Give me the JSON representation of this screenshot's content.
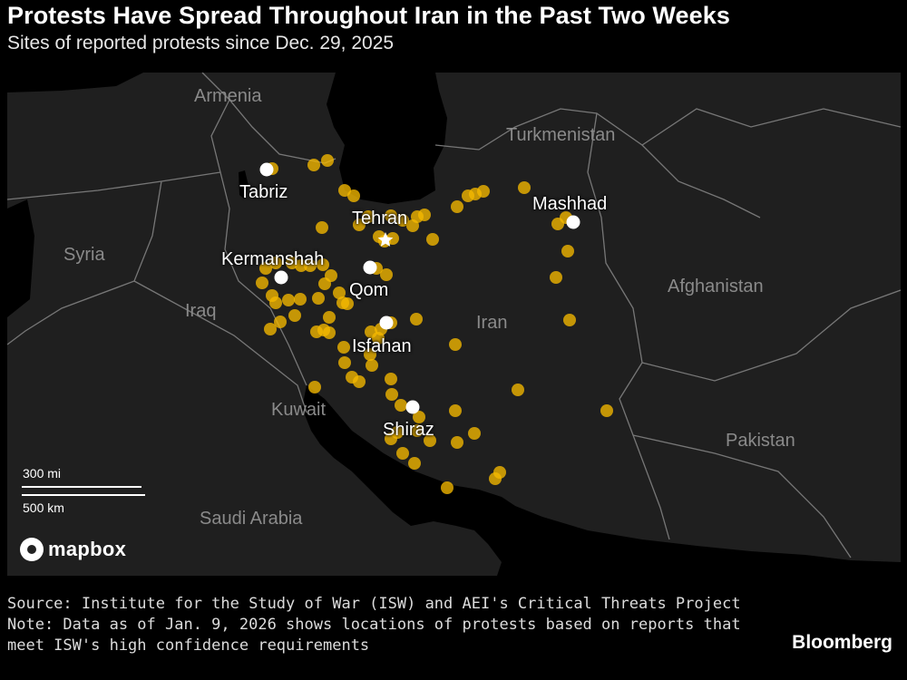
{
  "header": {
    "title": "Protests Have Spread Throughout Iran in the Past Two Weeks",
    "subtitle": "Sites of reported protests since Dec. 29, 2025"
  },
  "map": {
    "countries": {
      "armenia": "Armenia",
      "turkmenistan": "Turkmenistan",
      "syria": "Syria",
      "iraq": "Iraq",
      "iran": "Iran",
      "afghanistan": "Afghanistan",
      "kuwait": "Kuwait",
      "pakistan": "Pakistan",
      "saudi_arabia": "Saudi Arabia"
    },
    "cities": {
      "tabriz": "Tabriz",
      "tehran": "Tehran",
      "mashhad": "Mashhad",
      "kermanshah": "Kermanshah",
      "qom": "Qom",
      "isfahan": "Isfahan",
      "shiraz": "Shiraz"
    },
    "scale": {
      "miles": "300 mi",
      "km": "500 km"
    },
    "attribution": "mapbox",
    "colors": {
      "protest_site": "#f5b800",
      "major_city": "#ffffff",
      "land": "#1f1f1f",
      "water": "#000000"
    }
  },
  "footer": {
    "source": "Source: Institute for the Study of War (ISW) and AEI's Critical Threats Project",
    "note_line1": "Note: Data as of Jan. 9, 2026 shows locations of protests based on reports that",
    "note_line2": "meet ISW's high confidence requirements",
    "brand": "Bloomberg"
  }
}
